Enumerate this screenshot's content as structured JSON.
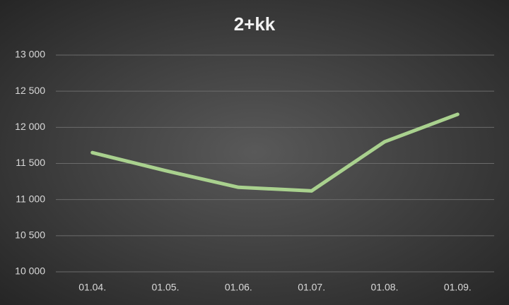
{
  "chart_data": {
    "type": "line",
    "title": "2+kk",
    "categories": [
      "01.04.",
      "01.05.",
      "01.06.",
      "01.07.",
      "01.08.",
      "01.09."
    ],
    "values": [
      11650,
      11400,
      11170,
      11120,
      11800,
      12180
    ],
    "color": "#a9d18e",
    "ylim": [
      10000,
      13000
    ],
    "yticks": [
      {
        "value": 10000,
        "label": "10 000"
      },
      {
        "value": 10500,
        "label": "10 500"
      },
      {
        "value": 11000,
        "label": "11 000"
      },
      {
        "value": 11500,
        "label": "11 500"
      },
      {
        "value": 12000,
        "label": "12 000"
      },
      {
        "value": 12500,
        "label": "12 500"
      },
      {
        "value": 13000,
        "label": "13 000"
      }
    ],
    "grid": true
  }
}
